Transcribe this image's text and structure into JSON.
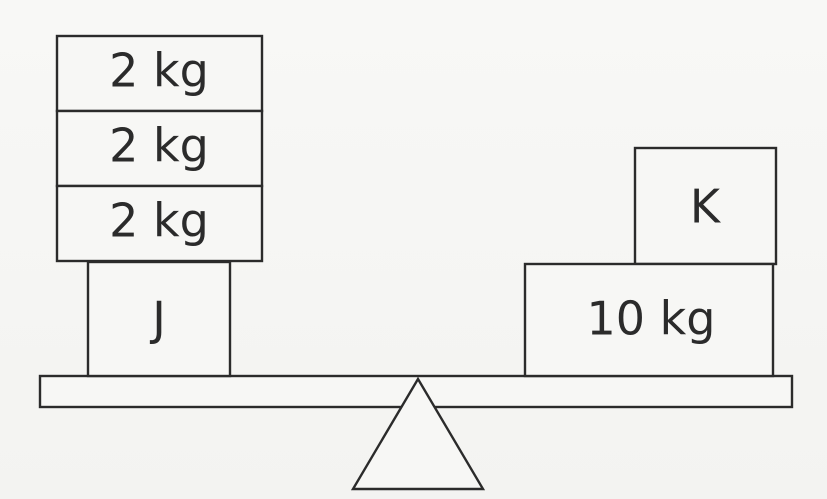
{
  "left_side": {
    "stack": [
      {
        "label": "2 kg"
      },
      {
        "label": "2 kg"
      },
      {
        "label": "2 kg"
      }
    ],
    "base_block": {
      "label": "J"
    }
  },
  "right_side": {
    "top_block": {
      "label": "K"
    },
    "base_block": {
      "label": "10 kg"
    }
  }
}
